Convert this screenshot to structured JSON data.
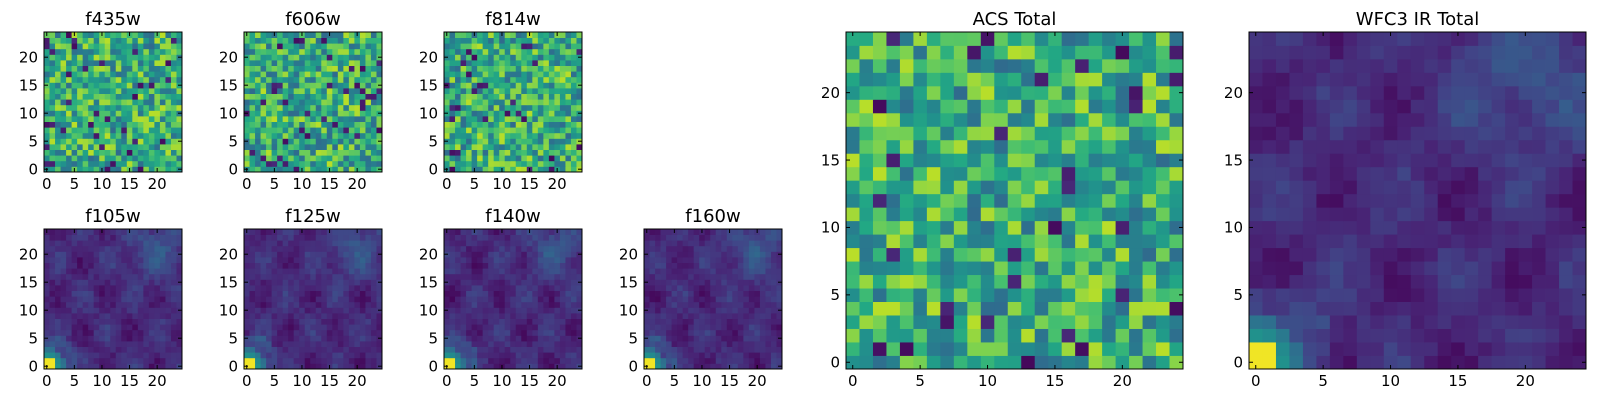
{
  "chart_data": [
    {
      "type": "heatmap",
      "title": "f435w",
      "grid_size": 25,
      "xlim": [
        0,
        24
      ],
      "ylim": [
        0,
        24
      ],
      "xticks": [
        0,
        5,
        10,
        15,
        20
      ],
      "yticks": [
        0,
        5,
        10,
        15,
        20
      ],
      "colormap": "viridis",
      "grid": false
    },
    {
      "type": "heatmap",
      "title": "f606w",
      "grid_size": 25,
      "xlim": [
        0,
        24
      ],
      "ylim": [
        0,
        24
      ],
      "xticks": [
        0,
        5,
        10,
        15,
        20
      ],
      "yticks": [
        0,
        5,
        10,
        15,
        20
      ],
      "colormap": "viridis",
      "grid": false
    },
    {
      "type": "heatmap",
      "title": "f814w",
      "grid_size": 25,
      "xlim": [
        0,
        24
      ],
      "ylim": [
        0,
        24
      ],
      "xticks": [
        0,
        5,
        10,
        15,
        20
      ],
      "yticks": [
        0,
        5,
        10,
        15,
        20
      ],
      "colormap": "viridis",
      "grid": false
    },
    {
      "type": "heatmap",
      "title": "f105w",
      "grid_size": 25,
      "xlim": [
        0,
        24
      ],
      "ylim": [
        0,
        24
      ],
      "xticks": [
        0,
        5,
        10,
        15,
        20
      ],
      "yticks": [
        0,
        5,
        10,
        15,
        20
      ],
      "colormap": "viridis",
      "grid": false
    },
    {
      "type": "heatmap",
      "title": "f125w",
      "grid_size": 25,
      "xlim": [
        0,
        24
      ],
      "ylim": [
        0,
        24
      ],
      "xticks": [
        0,
        5,
        10,
        15,
        20
      ],
      "yticks": [
        0,
        5,
        10,
        15,
        20
      ],
      "colormap": "viridis",
      "grid": false
    },
    {
      "type": "heatmap",
      "title": "f140w",
      "grid_size": 25,
      "xlim": [
        0,
        24
      ],
      "ylim": [
        0,
        24
      ],
      "xticks": [
        0,
        5,
        10,
        15,
        20
      ],
      "yticks": [
        0,
        5,
        10,
        15,
        20
      ],
      "colormap": "viridis",
      "grid": false
    },
    {
      "type": "heatmap",
      "title": "f160w",
      "grid_size": 25,
      "xlim": [
        0,
        24
      ],
      "ylim": [
        0,
        24
      ],
      "xticks": [
        0,
        5,
        10,
        15,
        20
      ],
      "yticks": [
        0,
        5,
        10,
        15,
        20
      ],
      "colormap": "viridis",
      "grid": false
    },
    {
      "type": "heatmap",
      "title": "ACS Total",
      "grid_size": 25,
      "xlim": [
        0,
        24
      ],
      "ylim": [
        0,
        24
      ],
      "xticks": [
        0,
        5,
        10,
        15,
        20
      ],
      "yticks": [
        0,
        5,
        10,
        15,
        20
      ],
      "colormap": "viridis",
      "grid": false
    },
    {
      "type": "heatmap",
      "title": "WFC3 IR Total",
      "grid_size": 25,
      "xlim": [
        0,
        24
      ],
      "ylim": [
        0,
        24
      ],
      "xticks": [
        0,
        5,
        10,
        15,
        20
      ],
      "yticks": [
        0,
        5,
        10,
        15,
        20
      ],
      "colormap": "viridis",
      "grid": false
    }
  ]
}
